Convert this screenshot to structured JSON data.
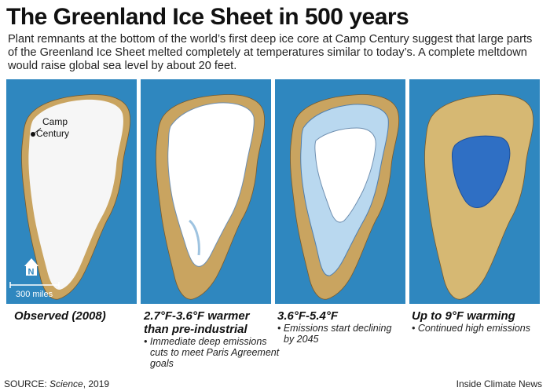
{
  "title": "The Greenland Ice Sheet in 500 years",
  "subtitle": "Plant remnants at the bottom of the world’s first deep ice core at Camp Century suggest that large parts of the Greenland Ice Sheet melted completely at temperatures similar to today’s. A complete meltdown would raise global sea level by about 20 feet.",
  "colors": {
    "ocean": "#2f87bf",
    "land": "#c9a460",
    "ice": "#ffffff",
    "melt_lake": "#2f6fc4"
  },
  "panels": [
    {
      "caption": "Observed (2008)",
      "notes": [],
      "map_labels": {
        "location_line1": "Camp",
        "location_line2": "Century",
        "scale": "300 miles",
        "north": "N"
      }
    },
    {
      "caption_line1": "2.7°F-3.6°F warmer",
      "caption_line2": "than pre-industrial",
      "notes": [
        "• Immediate deep emissions",
        "cuts to meet Paris Agreement",
        "goals"
      ]
    },
    {
      "caption": "3.6°F-5.4°F",
      "notes": [
        "• Emissions start declining",
        "by 2045"
      ]
    },
    {
      "caption": "Up to 9°F warming",
      "notes": [
        "• Continued high emissions"
      ]
    }
  ],
  "footer": {
    "source_prefix": "SOURCE: ",
    "source_name": "Science",
    "source_year": ", 2019",
    "credit": "Inside Climate News"
  }
}
